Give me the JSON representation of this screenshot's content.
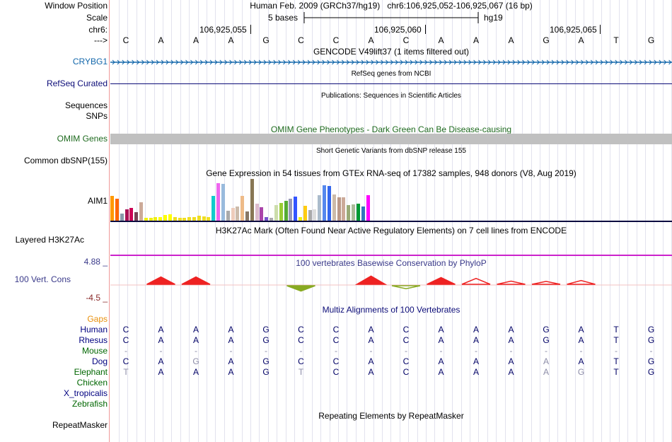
{
  "labels": {
    "window_position": "Window Position",
    "scale": "Scale",
    "chrom": "chr6:",
    "arrow": "--->",
    "crybg1": "CRYBG1",
    "refseq": "RefSeq Curated",
    "sequences": "Sequences",
    "snps": "SNPs",
    "omim": "OMIM Genes",
    "dbsnp": "Common dbSNP(155)",
    "aim1": "AIM1",
    "h3k27ac": "Layered H3K27Ac",
    "phylop_max": "4.88 _",
    "cons": "100 Vert. Cons",
    "phylop_min": "-4.5 _",
    "gaps": "Gaps"
  },
  "header": {
    "assembly": "Human Feb. 2009 (GRCh37/hg19)",
    "position": "chr6:106,925,052-106,925,067 (16 bp)",
    "scale_label": "5 bases",
    "scale_db": "hg19",
    "ticks": [
      "106,925,055",
      "106,925,060",
      "106,925,065"
    ]
  },
  "bases": [
    "C",
    "A",
    "A",
    "A",
    "G",
    "C",
    "C",
    "A",
    "C",
    "A",
    "A",
    "A",
    "G",
    "A",
    "T",
    "G"
  ],
  "tracks": {
    "gencode": "GENCODE V49lift37 (1 items filtered out)",
    "refseq": "RefSeq genes from NCBI",
    "publications": "Publications: Sequences in Scientific Articles",
    "omim": "OMIM Gene Phenotypes - Dark Green Can Be Disease-causing",
    "dbsnp": "Short Genetic Variants from dbSNP release 155",
    "gtex": "Gene Expression in 54 tissues from GTEx RNA-seq of 17382 samples, 948 donors (V8, Aug 2019)",
    "h3k27ac": "H3K27Ac Mark (Often Found Near Active Regulatory Elements) on 7 cell lines from ENCODE",
    "phylop": "100 vertebrates Basewise Conservation by PhyloP",
    "multiz": "Multiz Alignments of 100 Vertebrates",
    "rmsk": "Repeating Elements by RepeatMasker"
  },
  "species": [
    {
      "name": "Human",
      "color": "#000080",
      "bases": [
        "C",
        "A",
        "A",
        "A",
        "G",
        "C",
        "C",
        "A",
        "C",
        "A",
        "A",
        "A",
        "G",
        "A",
        "T",
        "G"
      ],
      "mismatch": []
    },
    {
      "name": "Rhesus",
      "color": "#000080",
      "bases": [
        "C",
        "A",
        "A",
        "A",
        "G",
        "C",
        "C",
        "A",
        "C",
        "A",
        "A",
        "A",
        "G",
        "A",
        "T",
        "G"
      ],
      "mismatch": []
    },
    {
      "name": "Mouse",
      "color": "#006600",
      "bases": [
        "-",
        "-",
        "-",
        "-",
        "-",
        "-",
        "-",
        "-",
        "-",
        "-",
        "-",
        "-",
        "-",
        "-",
        "-",
        "-"
      ],
      "mismatch": [
        0,
        1,
        2,
        3,
        4,
        5,
        6,
        7,
        8,
        9,
        10,
        11,
        12,
        13,
        14,
        15
      ]
    },
    {
      "name": "Dog",
      "color": "#000080",
      "bases": [
        "C",
        "A",
        "G",
        "A",
        "G",
        "C",
        "C",
        "A",
        "C",
        "A",
        "A",
        "A",
        "A",
        "A",
        "T",
        "G"
      ],
      "mismatch": [
        2,
        12
      ]
    },
    {
      "name": "Elephant",
      "color": "#006600",
      "bases": [
        "T",
        "A",
        "A",
        "A",
        "G",
        "T",
        "C",
        "A",
        "C",
        "A",
        "A",
        "A",
        "A",
        "G",
        "T",
        "G"
      ],
      "mismatch": [
        0,
        5,
        12,
        13
      ]
    },
    {
      "name": "Chicken",
      "color": "#006600",
      "bases": [],
      "mismatch": []
    },
    {
      "name": "X_tropicalis",
      "color": "#000080",
      "bases": [],
      "mismatch": []
    },
    {
      "name": "Zebrafish",
      "color": "#006600",
      "bases": [],
      "mismatch": []
    }
  ],
  "repeatmasker_label": "RepeatMasker",
  "gtex_values": [
    0.58,
    0.52,
    0.16,
    0.27,
    0.3,
    0.2,
    0.44,
    0.07,
    0.06,
    0.08,
    0.08,
    0.13,
    0.15,
    0.09,
    0.07,
    0.07,
    0.08,
    0.08,
    0.11,
    0.1,
    0.09,
    0.58,
    0.88,
    0.86,
    0.24,
    0.3,
    0.33,
    0.58,
    0.22,
    0.98,
    0.4,
    0.32,
    0.08,
    0.06,
    0.37,
    0.42,
    0.46,
    0.51,
    0.56,
    0.09,
    0.35,
    0.25,
    0.26,
    0.6,
    0.83,
    0.82,
    0.61,
    0.55,
    0.55,
    0.37,
    0.38,
    0.4,
    0.34,
    0.6
  ],
  "gtex_colors": [
    "#FF9900",
    "#FF6600",
    "#8899AA",
    "#AA1155",
    "#CC0055",
    "#774455",
    "#CCAA99",
    "#EEEE11",
    "#EEEE11",
    "#EEEE11",
    "#FFFF00",
    "#FFFF00",
    "#FFFF00",
    "#EEDD22",
    "#EEDD22",
    "#EEDD22",
    "#EEDD22",
    "#EEDD22",
    "#EEDD22",
    "#EEDD22",
    "#EEDD22",
    "#11CCCC",
    "#EE66EE",
    "#99BBDD",
    "#AAAAAA",
    "#EECCBB",
    "#CCBBAA",
    "#EEBB88",
    "#887766",
    "#887755",
    "#DDBBCC",
    "#AA44AA",
    "#7755CC",
    "#AAAAAA",
    "#CCDDAA",
    "#99CC33",
    "#55AA33",
    "#9999BB",
    "#3355FF",
    "#EEEE11",
    "#FFCC11",
    "#AAAAAA",
    "#DDDDDD",
    "#AABBCC",
    "#5588EE",
    "#3366EE",
    "#CCBBAA",
    "#BB9988",
    "#CCAA99",
    "#99AA77",
    "#AABB99",
    "#009933",
    "#3377BB",
    "#FF00FF"
  ],
  "phylop_values": [
    0,
    2.0,
    2.0,
    0,
    0,
    -1.8,
    0,
    2.3,
    -1.0,
    1.8,
    1.5,
    0.6,
    0.5,
    0.8,
    0,
    0
  ],
  "colors": {
    "crybg1": "#1166aa",
    "refseq": "#0c0c78",
    "omim": "#1e6a1e",
    "omim_bar": "#c0c0c0",
    "h3k27ac_line": "#cc22cc",
    "phylop_text": "#3a3a8a",
    "phylop_pos": "#ee2222",
    "phylop_neg": "#88aa22",
    "gaps": "#e8900c",
    "multiz": "#0c0c78",
    "scale_tick": "#000000"
  }
}
